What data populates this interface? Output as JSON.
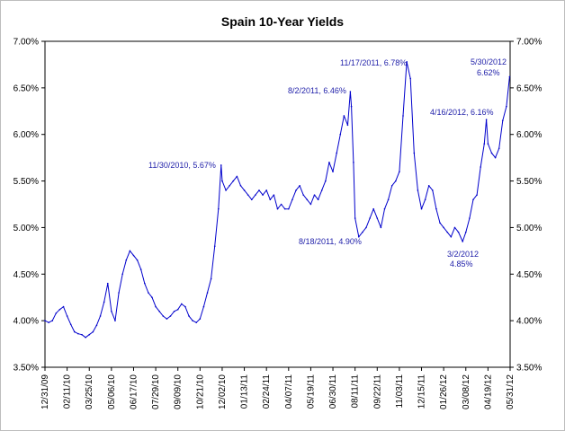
{
  "chart_data": {
    "type": "line",
    "title": "Spain 10-Year Yields",
    "xlabel": "",
    "ylabel": "",
    "ylim": [
      3.5,
      7.0
    ],
    "y_ticks": [
      "3.50%",
      "4.00%",
      "4.50%",
      "5.00%",
      "5.50%",
      "6.00%",
      "6.50%",
      "7.00%"
    ],
    "x_ticks": [
      "12/31/09",
      "02/11/10",
      "03/25/10",
      "05/06/10",
      "06/17/10",
      "07/29/10",
      "09/09/10",
      "10/21/10",
      "12/02/10",
      "01/13/11",
      "02/24/11",
      "04/07/11",
      "05/19/11",
      "06/30/11",
      "08/11/11",
      "09/22/11",
      "11/03/11",
      "12/15/11",
      "01/26/12",
      "03/08/12",
      "04/19/12",
      "05/31/12"
    ],
    "grid": false,
    "line_color": "#0000cc",
    "series": [
      {
        "x": [
          "2009-12-31",
          "2010-01-07",
          "2010-01-14",
          "2010-01-21",
          "2010-01-28",
          "2010-02-04",
          "2010-02-11",
          "2010-02-18",
          "2010-02-25",
          "2010-03-04",
          "2010-03-11",
          "2010-03-18",
          "2010-03-25",
          "2010-04-01",
          "2010-04-08",
          "2010-04-15",
          "2010-04-22",
          "2010-04-29",
          "2010-05-06",
          "2010-05-13",
          "2010-05-20",
          "2010-05-27",
          "2010-06-03",
          "2010-06-10",
          "2010-06-17",
          "2010-06-24",
          "2010-07-01",
          "2010-07-08",
          "2010-07-15",
          "2010-07-22",
          "2010-07-29",
          "2010-08-05",
          "2010-08-12",
          "2010-08-19",
          "2010-08-26",
          "2010-09-02",
          "2010-09-09",
          "2010-09-16",
          "2010-09-23",
          "2010-09-30",
          "2010-10-07",
          "2010-10-14",
          "2010-10-21",
          "2010-10-28",
          "2010-11-04",
          "2010-11-11",
          "2010-11-18",
          "2010-11-25",
          "2010-11-30",
          "2010-12-02",
          "2010-12-09",
          "2010-12-16",
          "2010-12-23",
          "2010-12-30",
          "2011-01-06",
          "2011-01-13",
          "2011-01-20",
          "2011-01-27",
          "2011-02-03",
          "2011-02-10",
          "2011-02-17",
          "2011-02-24",
          "2011-03-03",
          "2011-03-10",
          "2011-03-17",
          "2011-03-24",
          "2011-03-31",
          "2011-04-07",
          "2011-04-14",
          "2011-04-21",
          "2011-04-28",
          "2011-05-05",
          "2011-05-12",
          "2011-05-19",
          "2011-05-26",
          "2011-06-02",
          "2011-06-09",
          "2011-06-16",
          "2011-06-23",
          "2011-06-30",
          "2011-07-07",
          "2011-07-14",
          "2011-07-21",
          "2011-07-28",
          "2011-08-02",
          "2011-08-04",
          "2011-08-08",
          "2011-08-11",
          "2011-08-18",
          "2011-08-25",
          "2011-09-01",
          "2011-09-08",
          "2011-09-15",
          "2011-09-22",
          "2011-09-29",
          "2011-10-06",
          "2011-10-13",
          "2011-10-20",
          "2011-10-27",
          "2011-11-03",
          "2011-11-10",
          "2011-11-17",
          "2011-11-24",
          "2011-12-01",
          "2011-12-08",
          "2011-12-15",
          "2011-12-22",
          "2011-12-29",
          "2012-01-05",
          "2012-01-12",
          "2012-01-19",
          "2012-01-26",
          "2012-02-02",
          "2012-02-09",
          "2012-02-16",
          "2012-02-23",
          "2012-03-02",
          "2012-03-08",
          "2012-03-15",
          "2012-03-22",
          "2012-03-29",
          "2012-04-05",
          "2012-04-12",
          "2012-04-16",
          "2012-04-19",
          "2012-04-26",
          "2012-05-03",
          "2012-05-10",
          "2012-05-17",
          "2012-05-24",
          "2012-05-30"
        ],
        "values": [
          4.0,
          3.98,
          4.0,
          4.08,
          4.12,
          4.15,
          4.05,
          3.96,
          3.88,
          3.86,
          3.85,
          3.82,
          3.85,
          3.88,
          3.95,
          4.05,
          4.2,
          4.4,
          4.1,
          4.0,
          4.3,
          4.5,
          4.65,
          4.75,
          4.7,
          4.65,
          4.55,
          4.4,
          4.3,
          4.25,
          4.15,
          4.1,
          4.05,
          4.02,
          4.05,
          4.1,
          4.12,
          4.18,
          4.15,
          4.05,
          4.0,
          3.98,
          4.02,
          4.15,
          4.3,
          4.45,
          4.8,
          5.2,
          5.67,
          5.5,
          5.4,
          5.45,
          5.5,
          5.55,
          5.45,
          5.4,
          5.35,
          5.3,
          5.35,
          5.4,
          5.35,
          5.4,
          5.3,
          5.35,
          5.2,
          5.25,
          5.2,
          5.2,
          5.3,
          5.4,
          5.45,
          5.35,
          5.3,
          5.25,
          5.35,
          5.3,
          5.4,
          5.5,
          5.7,
          5.6,
          5.8,
          6.0,
          6.2,
          6.1,
          6.46,
          6.3,
          5.7,
          5.1,
          4.9,
          4.95,
          5.0,
          5.1,
          5.2,
          5.1,
          5.0,
          5.2,
          5.3,
          5.45,
          5.5,
          5.6,
          6.2,
          6.78,
          6.6,
          5.8,
          5.4,
          5.2,
          5.3,
          5.45,
          5.4,
          5.2,
          5.05,
          5.0,
          4.95,
          4.9,
          5.0,
          4.95,
          4.85,
          4.95,
          5.1,
          5.3,
          5.35,
          5.65,
          5.9,
          6.16,
          5.9,
          5.8,
          5.75,
          5.85,
          6.15,
          6.3,
          6.62
        ]
      }
    ],
    "annotations": [
      "11/30/2010, 5.67%",
      "8/2/2011, 6.46%",
      "11/17/2011, 6.78%",
      "5/30/2012",
      "6.62%",
      "4/16/2012, 6.16%",
      "8/18/2011, 4.90%",
      "3/2/2012",
      "4.85%"
    ]
  }
}
